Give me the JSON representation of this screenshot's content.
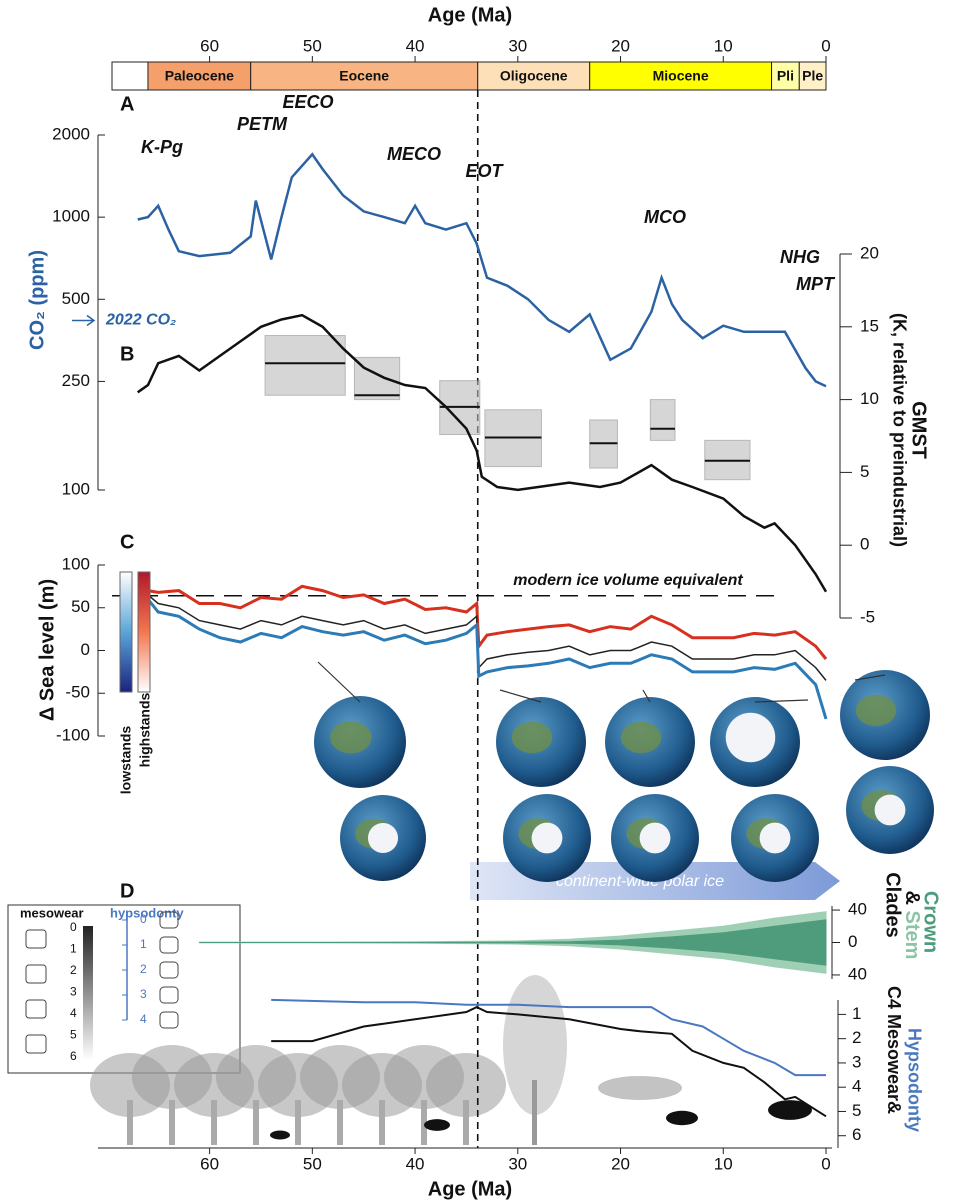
{
  "chart_data": [
    {
      "type": "timescale",
      "title": "Age (Ma)",
      "xlim": [
        69.5,
        0
      ],
      "xticks": [
        60,
        50,
        40,
        30,
        20,
        10,
        0
      ],
      "epochs": [
        {
          "name": "Paleocene",
          "start": 66,
          "end": 56,
          "color": "#f5a06a"
        },
        {
          "name": "Eocene",
          "start": 56,
          "end": 33.9,
          "color": "#f8b482"
        },
        {
          "name": "Oligocene",
          "start": 33.9,
          "end": 23,
          "color": "#fde0b8"
        },
        {
          "name": "Miocene",
          "start": 23,
          "end": 5.3,
          "color": "#ffff00"
        },
        {
          "name": "Pli",
          "start": 5.3,
          "end": 2.6,
          "color": "#ffffa8"
        },
        {
          "name": "Ple",
          "start": 2.6,
          "end": 0,
          "color": "#fff0c8"
        }
      ]
    },
    {
      "type": "line",
      "panel": "A",
      "ylabel": "CO₂ (ppm)",
      "log_scale": true,
      "ylim": [
        100,
        2000
      ],
      "yticks": [
        100,
        250,
        500,
        1000,
        2000
      ],
      "color": "#2b62a3",
      "x": [
        67,
        66,
        65,
        64,
        63,
        61,
        58,
        56,
        55.5,
        54,
        53,
        52,
        50,
        49,
        47,
        45,
        43,
        41,
        40,
        39,
        37,
        35,
        34,
        33,
        31,
        29,
        27,
        25,
        23,
        21,
        19,
        17,
        16,
        15,
        14,
        12,
        10,
        8,
        6,
        4,
        2,
        1,
        0
      ],
      "values": [
        980,
        1000,
        1100,
        900,
        750,
        720,
        740,
        850,
        1150,
        700,
        1000,
        1400,
        1700,
        1500,
        1200,
        1050,
        1000,
        950,
        1100,
        950,
        900,
        950,
        800,
        600,
        560,
        500,
        420,
        380,
        440,
        300,
        330,
        450,
        600,
        480,
        420,
        360,
        400,
        380,
        380,
        380,
        280,
        250,
        240
      ],
      "events": [
        "K-Pg",
        "PETM",
        "EECO",
        "MECO",
        "EOT",
        "MCO",
        "NHG",
        "MPT"
      ],
      "reference": {
        "label": "2022 CO₂",
        "value": 418
      }
    },
    {
      "type": "line",
      "panel": "B",
      "y2label": [
        "GMST",
        "(K, relative to preindustrial)"
      ],
      "y2lim": [
        -5,
        20
      ],
      "y2ticks": [
        20,
        15,
        10,
        5,
        0,
        -5
      ],
      "x": [
        67,
        66,
        65,
        63,
        61,
        59,
        57,
        55,
        53,
        51,
        49,
        47,
        45,
        43,
        41,
        39,
        37,
        35,
        34,
        33.5,
        32,
        30,
        28,
        25,
        22,
        20,
        17,
        15,
        13,
        10,
        8,
        6,
        5,
        3,
        1,
        0
      ],
      "series": [
        {
          "color": "#111111",
          "axis": "y2",
          "values": [
            10.5,
            11,
            12.5,
            13,
            12,
            13,
            14,
            15,
            15.5,
            15.8,
            15,
            13.5,
            12.2,
            11.5,
            11,
            10.8,
            9.5,
            8,
            6.5,
            4.7,
            4,
            3.8,
            4,
            4.3,
            4,
            4.3,
            5.5,
            4.5,
            4,
            3.2,
            2,
            1.2,
            1.5,
            0,
            -2,
            -3.2
          ]
        }
      ],
      "estimates": [
        {
          "x0": 54.6,
          "x1": 46.8,
          "value": 12.5,
          "low": 10.3,
          "high": 14.4
        },
        {
          "x0": 45.9,
          "x1": 41.5,
          "value": 10.3,
          "low": 10.0,
          "high": 12.9
        },
        {
          "x0": 37.6,
          "x1": 33.7,
          "value": 9.5,
          "low": 7.6,
          "high": 11.3
        },
        {
          "x0": 33.2,
          "x1": 27.7,
          "value": 7.4,
          "low": 5.4,
          "high": 9.3
        },
        {
          "x0": 23,
          "x1": 20.3,
          "value": 7.0,
          "low": 5.3,
          "high": 8.6
        },
        {
          "x0": 17.1,
          "x1": 14.7,
          "value": 8.0,
          "low": 7.2,
          "high": 10
        },
        {
          "x0": 11.8,
          "x1": 7.4,
          "value": 5.8,
          "low": 4.5,
          "high": 7.2
        }
      ]
    },
    {
      "type": "sealevel",
      "panel": "C",
      "ylabel": "Δ Sea level (m)",
      "ylim": [
        -100,
        100
      ],
      "yticks": [
        100,
        50,
        0,
        -50,
        -100
      ],
      "x": [
        67,
        66,
        65,
        63,
        61,
        59,
        57,
        55,
        53,
        51,
        49,
        47,
        45,
        43,
        41,
        39,
        37,
        35,
        34,
        33.8,
        33,
        31,
        29,
        27,
        25,
        23,
        21,
        19,
        17,
        15,
        13,
        11,
        9,
        7,
        5,
        3,
        1,
        0
      ],
      "series": [
        {
          "name": "highstands",
          "color": "#d7301f",
          "values": [
            68,
            70,
            68,
            70,
            55,
            55,
            50,
            62,
            60,
            75,
            70,
            62,
            65,
            55,
            60,
            48,
            50,
            45,
            55,
            5,
            18,
            22,
            25,
            28,
            30,
            22,
            28,
            25,
            40,
            30,
            15,
            15,
            15,
            20,
            18,
            22,
            5,
            -10
          ]
        },
        {
          "color": "#222222",
          "values": [
            62,
            65,
            55,
            50,
            35,
            30,
            25,
            35,
            30,
            40,
            35,
            30,
            35,
            25,
            30,
            20,
            25,
            30,
            40,
            -20,
            -10,
            -5,
            -2,
            0,
            5,
            -5,
            0,
            0,
            10,
            5,
            -10,
            -10,
            -10,
            -5,
            -5,
            0,
            -20,
            -35
          ]
        },
        {
          "name": "lowstands",
          "color": "#2c7bb6",
          "values": [
            58,
            60,
            45,
            40,
            25,
            15,
            10,
            20,
            15,
            28,
            22,
            18,
            22,
            12,
            18,
            8,
            12,
            20,
            30,
            -30,
            -25,
            -20,
            -18,
            -15,
            -10,
            -20,
            -15,
            -15,
            -5,
            -10,
            -25,
            -25,
            -25,
            -20,
            -22,
            -15,
            -40,
            -80
          ]
        }
      ],
      "reference": {
        "label": "modern ice volume equivalent",
        "value": 64
      },
      "annotation": "continent-wide polar ice"
    },
    {
      "type": "spindle",
      "panel": "D",
      "ylim": [
        -45,
        45
      ],
      "yticks": [
        40,
        0,
        {
          "value": -40,
          "label": "40"
        }
      ],
      "x": [
        61,
        50,
        40,
        30,
        25,
        20,
        15,
        10,
        5,
        0
      ],
      "series": [
        {
          "name": "Stem",
          "color": "#9fd0b6",
          "values": [
            0.5,
            0.5,
            1,
            2,
            4,
            8,
            14,
            20,
            30,
            38
          ]
        },
        {
          "name": "Crown",
          "color": "#4e9c7c",
          "values": [
            0,
            0,
            0,
            0.5,
            1,
            3,
            7,
            12,
            20,
            28
          ]
        }
      ],
      "label_parts": [
        "&",
        "Clades",
        "C4"
      ]
    },
    {
      "type": "line",
      "xlabel": "Age (Ma)",
      "xlim": [
        69.5,
        0
      ],
      "xticks": [
        60,
        50,
        40,
        30,
        20,
        10,
        0
      ],
      "ylim": [
        6.3,
        0.2
      ],
      "yticks": [
        1,
        2,
        3,
        4,
        5,
        6
      ],
      "series": [
        {
          "name": "Mesowear",
          "color": "#111111",
          "x": [
            54,
            50,
            45,
            40,
            35,
            34,
            33,
            30,
            25,
            20,
            18,
            15,
            13,
            10,
            8,
            6,
            4,
            3,
            0
          ],
          "values": [
            2.1,
            2.1,
            1.5,
            1.2,
            0.9,
            0.7,
            0.9,
            1,
            1.2,
            1.6,
            1.7,
            1.8,
            2.5,
            3,
            3.2,
            3.8,
            4.5,
            4.4,
            5.2
          ]
        },
        {
          "name": "Hypsodonty",
          "color": "#4a78c0",
          "x": [
            54,
            45,
            40,
            35,
            30,
            25,
            20,
            17,
            15,
            12,
            10,
            8,
            5,
            3,
            0
          ],
          "values": [
            0.4,
            0.5,
            0.5,
            0.6,
            0.6,
            0.7,
            0.7,
            0.7,
            1.2,
            1.5,
            2,
            2.5,
            3,
            3.5,
            3.5
          ]
        }
      ],
      "label_joiner": "&",
      "legend": {
        "mesowear_title": "mesowear",
        "mesowear_ticks": [
          0,
          1,
          2,
          3,
          4,
          5,
          6
        ],
        "hypsodonty_title": "hypsodonty",
        "hypsodonty_ticks": [
          0,
          1,
          2,
          3,
          4
        ]
      }
    }
  ]
}
